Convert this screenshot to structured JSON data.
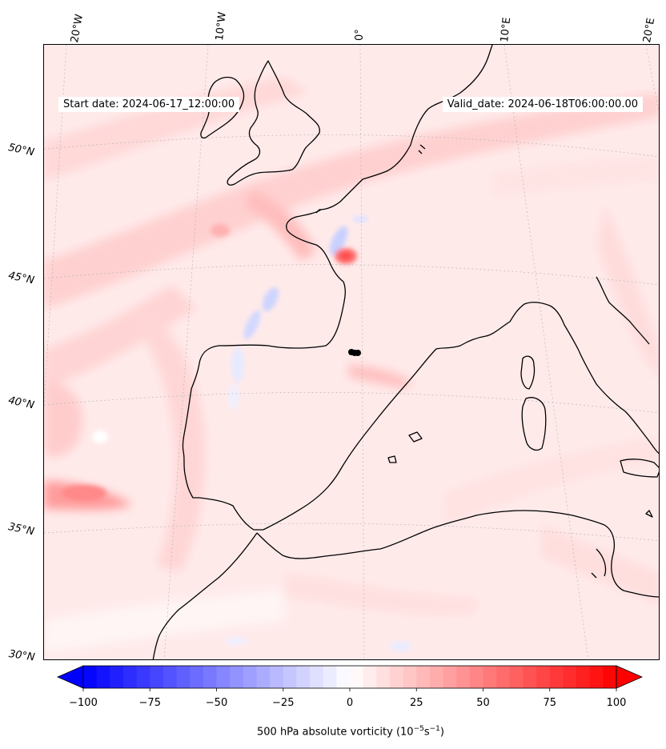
{
  "header": {
    "start_date": "Start date: 2024-06-17_12:00:00",
    "valid_date": "Valid_date: 2024-06-18T06:00:00.00"
  },
  "axes": {
    "lon_labels": [
      "20°W",
      "10°W",
      "0°",
      "10°E",
      "20°E"
    ],
    "lat_labels": [
      "50°N",
      "45°N",
      "40°N",
      "35°N",
      "30°N"
    ]
  },
  "colorbar": {
    "ticks": [
      "−100",
      "−75",
      "−50",
      "−25",
      "0",
      "25",
      "50",
      "75",
      "100"
    ],
    "tick_values": [
      -100,
      -75,
      -50,
      -25,
      0,
      25,
      50,
      75,
      100
    ],
    "min": -100,
    "max": 100,
    "levels": 40,
    "extend": "both",
    "label_prefix": "500 hPa absolute vorticity (10",
    "label_exp1": "−5",
    "label_mid": "s",
    "label_exp2": "−1",
    "label_suffix": ")"
  },
  "colors": {
    "negative_extreme": "#0000ff",
    "zero": "#ffffff",
    "positive_extreme": "#ff0000",
    "coastline": "#000000",
    "gridline": "#b0b0b0"
  }
}
